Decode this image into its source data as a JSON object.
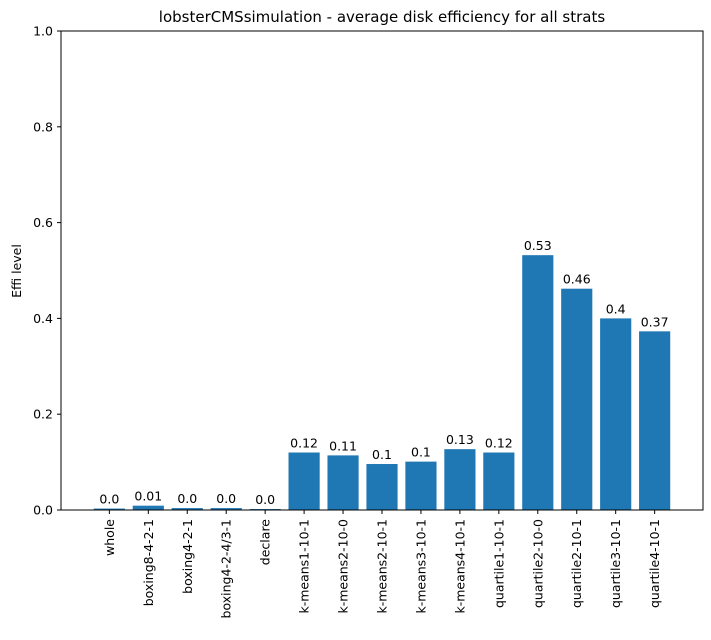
{
  "chart_data": {
    "type": "bar",
    "title": "lobsterCMSsimulation - average disk efficiency for all strats",
    "xlabel": "",
    "ylabel": "Effi level",
    "ylim": [
      0,
      1.0
    ],
    "yticks": [
      0.0,
      0.2,
      0.4,
      0.6,
      0.8,
      1.0
    ],
    "ytick_labels": [
      "0.0",
      "0.2",
      "0.4",
      "0.6",
      "0.8",
      "1.0"
    ],
    "grid": false,
    "bar_color": "#1f77b4",
    "categories": [
      "whole",
      "boxing8-4-2-1",
      "boxing4-2-1",
      "boxing4-2-4/3-1",
      "declare",
      "k-means1-10-1",
      "k-means2-10-0",
      "k-means2-10-1",
      "k-means3-10-1",
      "k-means4-10-1",
      "quartile1-10-1",
      "quartile2-10-0",
      "quartile2-10-1",
      "quartile3-10-1",
      "quartile4-10-1"
    ],
    "values": [
      0.003,
      0.009,
      0.004,
      0.004,
      0.002,
      0.12,
      0.114,
      0.096,
      0.101,
      0.127,
      0.12,
      0.532,
      0.462,
      0.4,
      0.373
    ],
    "data_labels": [
      "0.0",
      "0.01",
      "0.0",
      "0.0",
      "0.0",
      "0.12",
      "0.11",
      "0.1",
      "0.1",
      "0.13",
      "0.12",
      "0.53",
      "0.46",
      "0.4",
      "0.37"
    ]
  }
}
